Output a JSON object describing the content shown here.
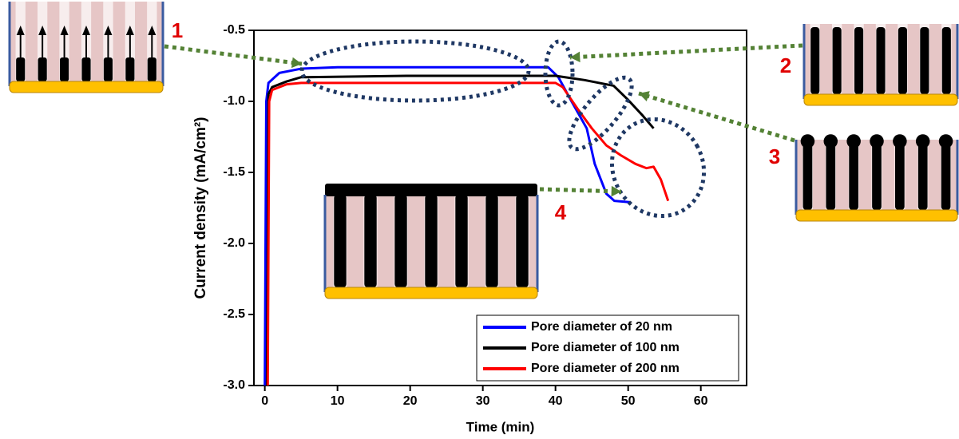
{
  "chart_data": {
    "type": "line",
    "xlabel": "Time (min)",
    "ylabel": "Current density (mA/cm²)",
    "xlim": [
      -1.5,
      66.3
    ],
    "ylim": [
      -3.0,
      -0.5
    ],
    "xticks": [
      0,
      10,
      20,
      30,
      40,
      50,
      60
    ],
    "yticks": [
      -0.5,
      {
        "value": -1.0,
        "label": "-1.0"
      },
      -1.5,
      {
        "value": -2.0,
        "label": "-2.0"
      },
      -2.5,
      {
        "value": -3.0,
        "label": "-3.0"
      }
    ],
    "legend": "lower right",
    "annotations": [
      "1",
      "2",
      "3",
      "4"
    ],
    "series": [
      {
        "name": "Pore diameter of 20 nm",
        "color": "#0000ff",
        "x": [
          0,
          0.2,
          0.5,
          2,
          5,
          10,
          20,
          30,
          39,
          40.4,
          42.1,
          44.3,
          45.4,
          47,
          48.1,
          50.3
        ],
        "values": [
          -3.0,
          -1.0,
          -0.87,
          -0.8,
          -0.77,
          -0.76,
          -0.76,
          -0.76,
          -0.76,
          -0.83,
          -0.99,
          -1.19,
          -1.44,
          -1.65,
          -1.7,
          -1.71
        ]
      },
      {
        "name": "Pore diameter of 100 nm",
        "color": "#000000",
        "x": [
          0.3,
          0.5,
          1,
          3,
          5,
          20,
          40,
          44,
          48,
          50,
          52,
          53.5
        ],
        "values": [
          -3.0,
          -0.95,
          -0.9,
          -0.86,
          -0.83,
          -0.82,
          -0.82,
          -0.85,
          -0.89,
          -0.99,
          -1.1,
          -1.19
        ]
      },
      {
        "name": "Pore diameter of 200 nm",
        "color": "#ff0000",
        "x": [
          0.4,
          0.6,
          1,
          3,
          5,
          20,
          40,
          41,
          43,
          45,
          47,
          49,
          51,
          52.5,
          53.5,
          54.5,
          55.5
        ],
        "values": [
          -3.0,
          -1.0,
          -0.92,
          -0.88,
          -0.87,
          -0.87,
          -0.87,
          -0.9,
          -1.05,
          -1.19,
          -1.31,
          -1.38,
          -1.44,
          -1.47,
          -1.46,
          -1.55,
          -1.7
        ]
      }
    ]
  }
}
